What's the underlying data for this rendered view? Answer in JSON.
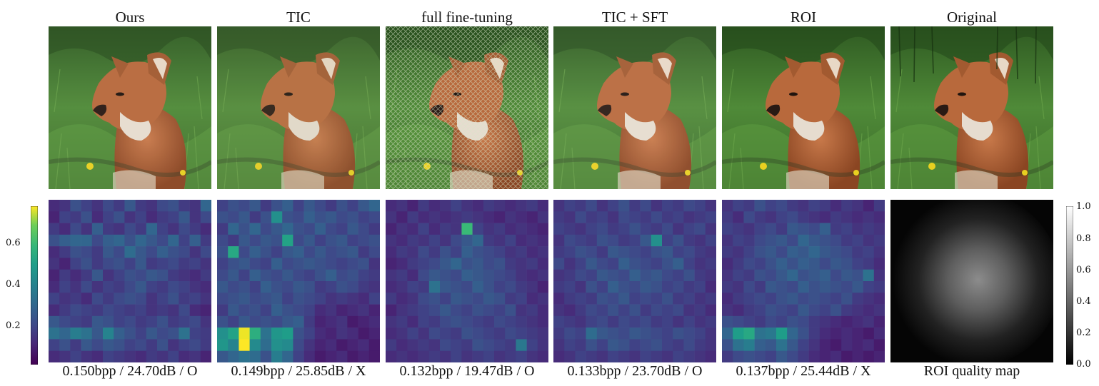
{
  "panels": [
    {
      "title": "Ours",
      "caption": "0.150bpp / 24.70dB / O"
    },
    {
      "title": "TIC",
      "caption": "0.149bpp / 25.85dB / X"
    },
    {
      "title": "full fine-tuning",
      "caption": "0.132bpp / 19.47dB / O"
    },
    {
      "title": "TIC + SFT",
      "caption": "0.133bpp / 23.70dB / O"
    },
    {
      "title": "ROI",
      "caption": "0.137bpp / 25.44dB / X"
    },
    {
      "title": "Original",
      "caption": "ROI quality map"
    }
  ],
  "colorbar_left": {
    "colormap": "viridis",
    "ticks": [
      "0.2",
      "0.4",
      "0.6"
    ]
  },
  "colorbar_right": {
    "colormap": "gray",
    "ticks": [
      "0.0",
      "0.2",
      "0.4",
      "0.6",
      "0.8",
      "1.0"
    ]
  },
  "heatmaps": [
    [
      [
        0.1,
        0.12,
        0.2,
        0.16,
        0.12,
        0.18,
        0.14,
        0.22,
        0.14,
        0.12,
        0.18,
        0.2,
        0.14,
        0.12,
        0.26
      ],
      [
        0.08,
        0.16,
        0.14,
        0.2,
        0.1,
        0.16,
        0.2,
        0.12,
        0.16,
        0.1,
        0.14,
        0.16,
        0.22,
        0.12,
        0.18
      ],
      [
        0.14,
        0.1,
        0.18,
        0.12,
        0.24,
        0.14,
        0.12,
        0.18,
        0.14,
        0.26,
        0.16,
        0.12,
        0.18,
        0.14,
        0.1
      ],
      [
        0.2,
        0.24,
        0.26,
        0.26,
        0.18,
        0.24,
        0.26,
        0.2,
        0.26,
        0.22,
        0.18,
        0.26,
        0.16,
        0.24,
        0.14
      ],
      [
        0.1,
        0.14,
        0.2,
        0.18,
        0.14,
        0.22,
        0.18,
        0.28,
        0.22,
        0.18,
        0.24,
        0.2,
        0.18,
        0.12,
        0.18
      ],
      [
        0.12,
        0.08,
        0.16,
        0.2,
        0.14,
        0.18,
        0.2,
        0.16,
        0.22,
        0.14,
        0.16,
        0.18,
        0.14,
        0.16,
        0.12
      ],
      [
        0.08,
        0.14,
        0.1,
        0.14,
        0.22,
        0.12,
        0.16,
        0.2,
        0.18,
        0.22,
        0.2,
        0.14,
        0.12,
        0.1,
        0.14
      ],
      [
        0.1,
        0.16,
        0.12,
        0.18,
        0.12,
        0.16,
        0.14,
        0.18,
        0.22,
        0.16,
        0.14,
        0.18,
        0.16,
        0.12,
        0.1
      ],
      [
        0.16,
        0.12,
        0.14,
        0.1,
        0.18,
        0.14,
        0.18,
        0.2,
        0.18,
        0.12,
        0.16,
        0.2,
        0.14,
        0.16,
        0.12
      ],
      [
        0.1,
        0.14,
        0.18,
        0.16,
        0.14,
        0.18,
        0.16,
        0.14,
        0.16,
        0.12,
        0.14,
        0.12,
        0.18,
        0.1,
        0.08
      ],
      [
        0.22,
        0.18,
        0.16,
        0.14,
        0.22,
        0.2,
        0.16,
        0.18,
        0.14,
        0.16,
        0.2,
        0.14,
        0.16,
        0.18,
        0.12
      ],
      [
        0.3,
        0.26,
        0.34,
        0.3,
        0.22,
        0.36,
        0.24,
        0.2,
        0.16,
        0.22,
        0.18,
        0.2,
        0.3,
        0.16,
        0.14
      ],
      [
        0.16,
        0.2,
        0.14,
        0.22,
        0.18,
        0.22,
        0.2,
        0.16,
        0.18,
        0.14,
        0.2,
        0.12,
        0.16,
        0.18,
        0.14
      ],
      [
        0.1,
        0.12,
        0.16,
        0.12,
        0.1,
        0.16,
        0.14,
        0.12,
        0.1,
        0.14,
        0.12,
        0.16,
        0.1,
        0.12,
        0.08
      ]
    ],
    [
      [
        0.16,
        0.2,
        0.18,
        0.22,
        0.14,
        0.2,
        0.24,
        0.16,
        0.22,
        0.18,
        0.14,
        0.2,
        0.16,
        0.22,
        0.26
      ],
      [
        0.2,
        0.18,
        0.22,
        0.14,
        0.2,
        0.4,
        0.2,
        0.18,
        0.24,
        0.2,
        0.22,
        0.18,
        0.2,
        0.16,
        0.18
      ],
      [
        0.14,
        0.26,
        0.2,
        0.26,
        0.18,
        0.22,
        0.26,
        0.2,
        0.18,
        0.24,
        0.18,
        0.16,
        0.22,
        0.18,
        0.14
      ],
      [
        0.18,
        0.14,
        0.22,
        0.18,
        0.22,
        0.2,
        0.46,
        0.18,
        0.22,
        0.16,
        0.2,
        0.22,
        0.16,
        0.18,
        0.2
      ],
      [
        0.2,
        0.48,
        0.18,
        0.24,
        0.2,
        0.16,
        0.22,
        0.24,
        0.18,
        0.22,
        0.18,
        0.2,
        0.22,
        0.14,
        0.18
      ],
      [
        0.16,
        0.2,
        0.22,
        0.18,
        0.16,
        0.24,
        0.18,
        0.2,
        0.22,
        0.2,
        0.18,
        0.16,
        0.18,
        0.2,
        0.12
      ],
      [
        0.18,
        0.22,
        0.16,
        0.24,
        0.2,
        0.18,
        0.22,
        0.18,
        0.16,
        0.2,
        0.24,
        0.18,
        0.2,
        0.16,
        0.14
      ],
      [
        0.22,
        0.18,
        0.2,
        0.16,
        0.24,
        0.2,
        0.18,
        0.22,
        0.2,
        0.14,
        0.16,
        0.2,
        0.18,
        0.14,
        0.12
      ],
      [
        0.18,
        0.2,
        0.22,
        0.18,
        0.2,
        0.22,
        0.16,
        0.2,
        0.18,
        0.16,
        0.12,
        0.14,
        0.12,
        0.1,
        0.16
      ],
      [
        0.14,
        0.22,
        0.18,
        0.2,
        0.16,
        0.24,
        0.2,
        0.18,
        0.16,
        0.1,
        0.12,
        0.08,
        0.1,
        0.12,
        0.08
      ],
      [
        0.2,
        0.16,
        0.22,
        0.18,
        0.2,
        0.18,
        0.22,
        0.24,
        0.14,
        0.08,
        0.1,
        0.12,
        0.06,
        0.08,
        0.1
      ],
      [
        0.4,
        0.46,
        0.78,
        0.5,
        0.3,
        0.42,
        0.44,
        0.2,
        0.16,
        0.1,
        0.08,
        0.12,
        0.1,
        0.06,
        0.08
      ],
      [
        0.42,
        0.36,
        0.8,
        0.38,
        0.28,
        0.4,
        0.38,
        0.18,
        0.12,
        0.08,
        0.1,
        0.06,
        0.08,
        0.1,
        0.06
      ],
      [
        0.22,
        0.26,
        0.3,
        0.28,
        0.2,
        0.34,
        0.26,
        0.16,
        0.1,
        0.06,
        0.08,
        0.1,
        0.06,
        0.08,
        0.06
      ]
    ],
    [
      [
        0.1,
        0.12,
        0.08,
        0.14,
        0.1,
        0.12,
        0.16,
        0.12,
        0.1,
        0.14,
        0.12,
        0.1,
        0.12,
        0.14,
        0.1
      ],
      [
        0.12,
        0.08,
        0.14,
        0.1,
        0.12,
        0.1,
        0.12,
        0.14,
        0.12,
        0.1,
        0.08,
        0.12,
        0.1,
        0.08,
        0.12
      ],
      [
        0.08,
        0.12,
        0.1,
        0.16,
        0.1,
        0.14,
        0.12,
        0.54,
        0.16,
        0.12,
        0.14,
        0.1,
        0.12,
        0.1,
        0.08
      ],
      [
        0.12,
        0.1,
        0.14,
        0.12,
        0.16,
        0.12,
        0.18,
        0.22,
        0.26,
        0.14,
        0.12,
        0.16,
        0.1,
        0.12,
        0.1
      ],
      [
        0.1,
        0.14,
        0.12,
        0.18,
        0.14,
        0.2,
        0.16,
        0.24,
        0.2,
        0.18,
        0.16,
        0.12,
        0.14,
        0.1,
        0.12
      ],
      [
        0.08,
        0.1,
        0.14,
        0.16,
        0.18,
        0.22,
        0.26,
        0.2,
        0.22,
        0.18,
        0.2,
        0.14,
        0.12,
        0.14,
        0.1
      ],
      [
        0.12,
        0.14,
        0.1,
        0.18,
        0.22,
        0.2,
        0.18,
        0.24,
        0.22,
        0.2,
        0.18,
        0.16,
        0.12,
        0.1,
        0.12
      ],
      [
        0.1,
        0.12,
        0.16,
        0.14,
        0.3,
        0.22,
        0.2,
        0.18,
        0.24,
        0.2,
        0.16,
        0.18,
        0.14,
        0.12,
        0.08
      ],
      [
        0.14,
        0.1,
        0.12,
        0.18,
        0.2,
        0.16,
        0.22,
        0.2,
        0.18,
        0.22,
        0.2,
        0.14,
        0.16,
        0.1,
        0.12
      ],
      [
        0.08,
        0.12,
        0.14,
        0.16,
        0.18,
        0.22,
        0.18,
        0.16,
        0.2,
        0.18,
        0.16,
        0.2,
        0.12,
        0.14,
        0.1
      ],
      [
        0.12,
        0.14,
        0.1,
        0.16,
        0.14,
        0.18,
        0.2,
        0.18,
        0.16,
        0.14,
        0.18,
        0.16,
        0.14,
        0.12,
        0.1
      ],
      [
        0.1,
        0.12,
        0.16,
        0.12,
        0.18,
        0.16,
        0.14,
        0.2,
        0.18,
        0.16,
        0.14,
        0.18,
        0.16,
        0.14,
        0.12
      ],
      [
        0.14,
        0.1,
        0.12,
        0.14,
        0.12,
        0.18,
        0.16,
        0.14,
        0.2,
        0.18,
        0.16,
        0.14,
        0.32,
        0.16,
        0.12
      ],
      [
        0.1,
        0.12,
        0.1,
        0.12,
        0.14,
        0.12,
        0.16,
        0.12,
        0.14,
        0.16,
        0.12,
        0.14,
        0.16,
        0.12,
        0.1
      ]
    ],
    [
      [
        0.12,
        0.16,
        0.14,
        0.18,
        0.12,
        0.16,
        0.2,
        0.14,
        0.18,
        0.12,
        0.16,
        0.14,
        0.18,
        0.16,
        0.12
      ],
      [
        0.14,
        0.12,
        0.18,
        0.14,
        0.16,
        0.12,
        0.18,
        0.16,
        0.14,
        0.18,
        0.14,
        0.16,
        0.12,
        0.14,
        0.16
      ],
      [
        0.16,
        0.14,
        0.12,
        0.16,
        0.18,
        0.14,
        0.16,
        0.2,
        0.16,
        0.14,
        0.18,
        0.12,
        0.16,
        0.18,
        0.12
      ],
      [
        0.12,
        0.18,
        0.16,
        0.14,
        0.2,
        0.18,
        0.14,
        0.16,
        0.22,
        0.4,
        0.16,
        0.2,
        0.14,
        0.12,
        0.16
      ],
      [
        0.14,
        0.16,
        0.2,
        0.18,
        0.14,
        0.22,
        0.2,
        0.18,
        0.16,
        0.2,
        0.22,
        0.16,
        0.18,
        0.14,
        0.12
      ],
      [
        0.18,
        0.12,
        0.16,
        0.22,
        0.18,
        0.16,
        0.24,
        0.2,
        0.18,
        0.16,
        0.2,
        0.24,
        0.16,
        0.12,
        0.14
      ],
      [
        0.12,
        0.14,
        0.18,
        0.16,
        0.22,
        0.2,
        0.18,
        0.24,
        0.2,
        0.22,
        0.18,
        0.16,
        0.2,
        0.14,
        0.12
      ],
      [
        0.14,
        0.16,
        0.12,
        0.2,
        0.16,
        0.24,
        0.2,
        0.18,
        0.22,
        0.2,
        0.16,
        0.18,
        0.14,
        0.16,
        0.1
      ],
      [
        0.1,
        0.14,
        0.16,
        0.14,
        0.2,
        0.18,
        0.22,
        0.16,
        0.18,
        0.16,
        0.2,
        0.14,
        0.16,
        0.12,
        0.14
      ],
      [
        0.12,
        0.1,
        0.14,
        0.18,
        0.16,
        0.2,
        0.16,
        0.2,
        0.14,
        0.18,
        0.16,
        0.18,
        0.12,
        0.14,
        0.1
      ],
      [
        0.16,
        0.14,
        0.12,
        0.16,
        0.18,
        0.14,
        0.18,
        0.16,
        0.18,
        0.14,
        0.16,
        0.12,
        0.16,
        0.12,
        0.14
      ],
      [
        0.14,
        0.18,
        0.16,
        0.28,
        0.22,
        0.2,
        0.18,
        0.22,
        0.2,
        0.18,
        0.16,
        0.2,
        0.18,
        0.16,
        0.12
      ],
      [
        0.12,
        0.16,
        0.14,
        0.2,
        0.16,
        0.22,
        0.2,
        0.16,
        0.18,
        0.2,
        0.16,
        0.14,
        0.18,
        0.14,
        0.12
      ],
      [
        0.1,
        0.12,
        0.16,
        0.14,
        0.12,
        0.16,
        0.14,
        0.12,
        0.16,
        0.14,
        0.12,
        0.16,
        0.14,
        0.12,
        0.1
      ]
    ],
    [
      [
        0.12,
        0.16,
        0.14,
        0.2,
        0.16,
        0.18,
        0.14,
        0.12,
        0.16,
        0.14,
        0.1,
        0.14,
        0.12,
        0.08,
        0.14
      ],
      [
        0.14,
        0.1,
        0.18,
        0.14,
        0.12,
        0.16,
        0.18,
        0.14,
        0.12,
        0.1,
        0.14,
        0.12,
        0.1,
        0.12,
        0.1
      ],
      [
        0.16,
        0.14,
        0.12,
        0.16,
        0.18,
        0.14,
        0.22,
        0.2,
        0.18,
        0.24,
        0.14,
        0.16,
        0.12,
        0.14,
        0.12
      ],
      [
        0.12,
        0.16,
        0.14,
        0.18,
        0.2,
        0.22,
        0.18,
        0.26,
        0.22,
        0.2,
        0.18,
        0.14,
        0.16,
        0.12,
        0.14
      ],
      [
        0.14,
        0.12,
        0.16,
        0.2,
        0.22,
        0.18,
        0.24,
        0.22,
        0.26,
        0.22,
        0.2,
        0.18,
        0.14,
        0.16,
        0.12
      ],
      [
        0.1,
        0.14,
        0.18,
        0.16,
        0.2,
        0.24,
        0.2,
        0.24,
        0.22,
        0.18,
        0.22,
        0.2,
        0.16,
        0.14,
        0.1
      ],
      [
        0.12,
        0.16,
        0.14,
        0.2,
        0.18,
        0.22,
        0.26,
        0.2,
        0.22,
        0.24,
        0.18,
        0.22,
        0.2,
        0.3,
        0.12
      ],
      [
        0.14,
        0.12,
        0.18,
        0.14,
        0.22,
        0.2,
        0.18,
        0.24,
        0.2,
        0.22,
        0.2,
        0.18,
        0.22,
        0.16,
        0.14
      ],
      [
        0.1,
        0.14,
        0.16,
        0.18,
        0.16,
        0.2,
        0.22,
        0.18,
        0.2,
        0.18,
        0.16,
        0.2,
        0.14,
        0.12,
        0.1
      ],
      [
        0.12,
        0.1,
        0.14,
        0.16,
        0.2,
        0.18,
        0.16,
        0.22,
        0.18,
        0.16,
        0.2,
        0.14,
        0.12,
        0.1,
        0.12
      ],
      [
        0.2,
        0.18,
        0.16,
        0.14,
        0.18,
        0.16,
        0.2,
        0.18,
        0.14,
        0.12,
        0.1,
        0.08,
        0.1,
        0.12,
        0.08
      ],
      [
        0.26,
        0.44,
        0.48,
        0.3,
        0.32,
        0.44,
        0.26,
        0.2,
        0.14,
        0.1,
        0.08,
        0.1,
        0.08,
        0.06,
        0.1
      ],
      [
        0.2,
        0.3,
        0.34,
        0.24,
        0.22,
        0.3,
        0.22,
        0.16,
        0.12,
        0.08,
        0.06,
        0.1,
        0.08,
        0.1,
        0.06
      ],
      [
        0.14,
        0.18,
        0.2,
        0.18,
        0.16,
        0.22,
        0.18,
        0.14,
        0.1,
        0.08,
        0.1,
        0.06,
        0.08,
        0.06,
        0.08
      ]
    ]
  ]
}
